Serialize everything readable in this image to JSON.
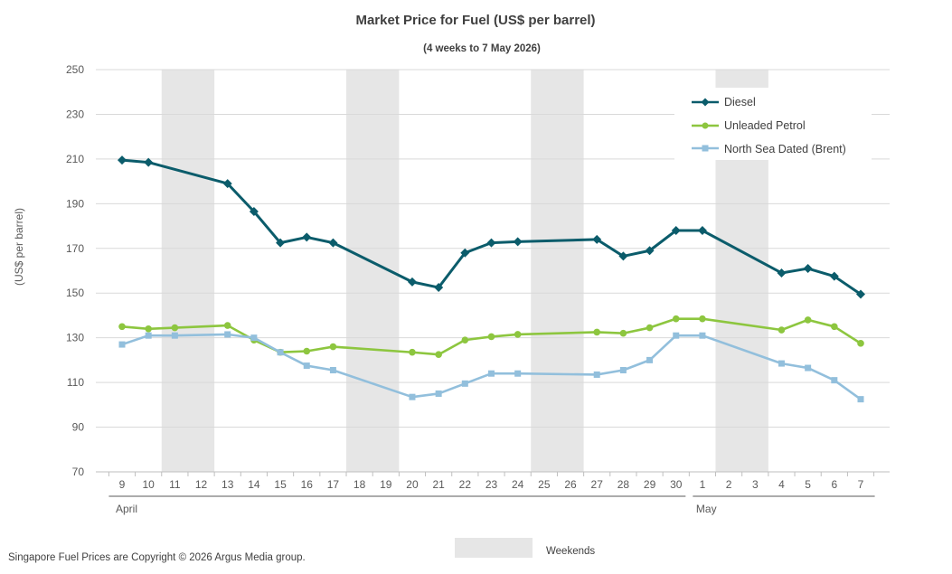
{
  "chart_data": {
    "type": "line",
    "title": "Market Price for Fuel (US$ per barrel)",
    "subtitle": "(4 weeks to 7 May 2026)",
    "ylabel": "(US$ per barrel)",
    "ylim": [
      70,
      250
    ],
    "yticks": [
      70,
      90,
      110,
      130,
      150,
      170,
      190,
      210,
      230,
      250
    ],
    "grid": true,
    "legend_position": "top-right",
    "categories": [
      "9",
      "10",
      "11",
      "12",
      "13",
      "14",
      "15",
      "16",
      "17",
      "18",
      "19",
      "20",
      "21",
      "22",
      "23",
      "24",
      "25",
      "26",
      "27",
      "28",
      "29",
      "30",
      "1",
      "2",
      "3",
      "4",
      "5",
      "6",
      "7"
    ],
    "month_groups": [
      {
        "label": "April",
        "from": "9",
        "to": "30"
      },
      {
        "label": "May",
        "from": "1",
        "to": "7"
      }
    ],
    "weekend_bands": [
      [
        "11",
        "12"
      ],
      [
        "18",
        "19"
      ],
      [
        "25",
        "26"
      ],
      [
        "2",
        "3"
      ]
    ],
    "series": [
      {
        "name": "Diesel",
        "color": "#0B5C6B",
        "marker": "diamond",
        "values": [
          209.5,
          208.5,
          null,
          null,
          199,
          186.5,
          172.5,
          175,
          172.5,
          null,
          null,
          155,
          152.5,
          168,
          172.5,
          173,
          null,
          null,
          174,
          166.5,
          169,
          178,
          178,
          null,
          null,
          159,
          161,
          157.5,
          149.5
        ]
      },
      {
        "name": "Unleaded Petrol",
        "color": "#8DC63F",
        "marker": "circle",
        "values": [
          135,
          134,
          134.5,
          null,
          135.5,
          129,
          123.5,
          124,
          126,
          null,
          null,
          123.5,
          122.5,
          129,
          130.5,
          131.5,
          null,
          null,
          132.5,
          132,
          134.5,
          138.5,
          138.5,
          null,
          null,
          133.5,
          138,
          135,
          127.5
        ]
      },
      {
        "name": "North Sea Dated (Brent)",
        "color": "#92BFDC",
        "marker": "square",
        "values": [
          127,
          131,
          131,
          null,
          131.5,
          130,
          123.5,
          117.5,
          115.5,
          null,
          null,
          103.5,
          105,
          109.5,
          114,
          114,
          null,
          null,
          113.5,
          115.5,
          120,
          131,
          131,
          null,
          null,
          118.5,
          116.5,
          111,
          102.5
        ]
      }
    ]
  },
  "legend": {
    "weekends_label": "Weekends",
    "weekend_color": "#E6E6E6"
  },
  "footer": {
    "copyright": "Singapore Fuel Prices are Copyright © 2026 Argus Media group."
  }
}
